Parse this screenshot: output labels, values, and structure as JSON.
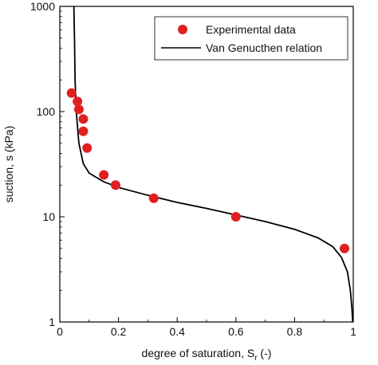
{
  "chart_data": {
    "type": "scatter",
    "xlabel": "degree of saturation, S",
    "xlabel_subscript": "r",
    "xlabel_suffix": " (-)",
    "ylabel": "suction, s (kPa)",
    "xlim": [
      0,
      1
    ],
    "ylim": [
      1,
      1000
    ],
    "yscale": "log",
    "x_ticks": [
      "0",
      "0.2",
      "0.4",
      "0.6",
      "0.8",
      "1"
    ],
    "y_ticks": [
      "1",
      "10",
      "100",
      "1000"
    ],
    "grid": false,
    "legend_position": "top-right",
    "series": [
      {
        "name": "Experimental data",
        "kind": "markers",
        "color": "#e02020",
        "points": [
          {
            "x": 0.04,
            "y": 150
          },
          {
            "x": 0.06,
            "y": 125
          },
          {
            "x": 0.065,
            "y": 105
          },
          {
            "x": 0.08,
            "y": 85
          },
          {
            "x": 0.08,
            "y": 65
          },
          {
            "x": 0.093,
            "y": 45
          },
          {
            "x": 0.15,
            "y": 25
          },
          {
            "x": 0.19,
            "y": 20
          },
          {
            "x": 0.32,
            "y": 15
          },
          {
            "x": 0.6,
            "y": 10
          },
          {
            "x": 0.97,
            "y": 5
          }
        ]
      },
      {
        "name": "Van Genucthen relation",
        "kind": "line",
        "color": "#000000",
        "points": [
          {
            "x": 0.048,
            "y": 1000
          },
          {
            "x": 0.05,
            "y": 500
          },
          {
            "x": 0.052,
            "y": 200
          },
          {
            "x": 0.056,
            "y": 100
          },
          {
            "x": 0.065,
            "y": 50
          },
          {
            "x": 0.08,
            "y": 32
          },
          {
            "x": 0.1,
            "y": 26
          },
          {
            "x": 0.15,
            "y": 21.5
          },
          {
            "x": 0.2,
            "y": 19
          },
          {
            "x": 0.3,
            "y": 16
          },
          {
            "x": 0.4,
            "y": 13.7
          },
          {
            "x": 0.5,
            "y": 12
          },
          {
            "x": 0.6,
            "y": 10.4
          },
          {
            "x": 0.7,
            "y": 9.0
          },
          {
            "x": 0.8,
            "y": 7.6
          },
          {
            "x": 0.88,
            "y": 6.3
          },
          {
            "x": 0.93,
            "y": 5.2
          },
          {
            "x": 0.96,
            "y": 4.1
          },
          {
            "x": 0.98,
            "y": 3.0
          },
          {
            "x": 0.99,
            "y": 2.0
          },
          {
            "x": 0.995,
            "y": 1.4
          },
          {
            "x": 0.998,
            "y": 1.0
          }
        ]
      }
    ]
  }
}
